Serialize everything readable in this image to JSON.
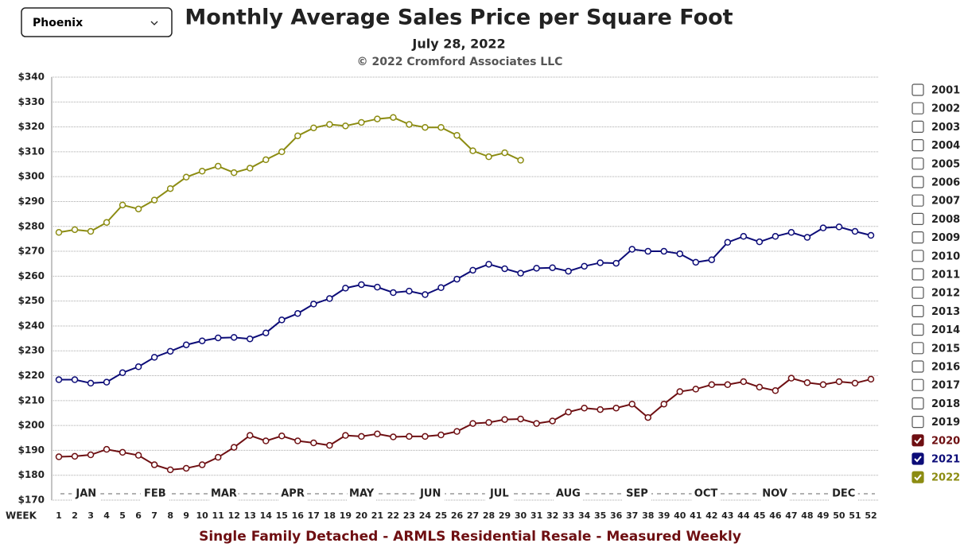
{
  "dropdown": "Phoenix",
  "chart_data": {
    "type": "line",
    "title": "Monthly Average Sales Price per Square Foot",
    "subtitle": "July 28, 2022",
    "copyright": "© 2022 Cromford Associates LLC",
    "footer": "Single Family Detached - ARMLS Residential Resale - Measured Weekly",
    "x_label": "WEEK",
    "months": [
      "JAN",
      "FEB",
      "MAR",
      "APR",
      "MAY",
      "JUN",
      "JUL",
      "AUG",
      "SEP",
      "OCT",
      "NOV",
      "DEC"
    ],
    "x": [
      1,
      2,
      3,
      4,
      5,
      6,
      7,
      8,
      9,
      10,
      11,
      12,
      13,
      14,
      15,
      16,
      17,
      18,
      19,
      20,
      21,
      22,
      23,
      24,
      25,
      26,
      27,
      28,
      29,
      30,
      31,
      32,
      33,
      34,
      35,
      36,
      37,
      38,
      39,
      40,
      41,
      42,
      43,
      44,
      45,
      46,
      47,
      48,
      49,
      50,
      51,
      52
    ],
    "xlim": [
      0.55,
      52.45
    ],
    "xticks": [
      1,
      2,
      3,
      4,
      5,
      6,
      7,
      8,
      9,
      10,
      11,
      12,
      13,
      14,
      15,
      16,
      17,
      18,
      19,
      20,
      21,
      22,
      23,
      24,
      25,
      26,
      27,
      28,
      29,
      30,
      31,
      32,
      33,
      34,
      35,
      36,
      37,
      38,
      39,
      40,
      41,
      42,
      43,
      44,
      45,
      46,
      47,
      48,
      49,
      50,
      51,
      52
    ],
    "ylim": [
      170,
      340
    ],
    "yticks": [
      {
        "value": 170,
        "label": "$170"
      },
      {
        "value": 180,
        "label": "$180"
      },
      {
        "value": 190,
        "label": "$190"
      },
      {
        "value": 200,
        "label": "$200"
      },
      {
        "value": 210,
        "label": "$210"
      },
      {
        "value": 220,
        "label": "$220"
      },
      {
        "value": 230,
        "label": "$230"
      },
      {
        "value": 240,
        "label": "$240"
      },
      {
        "value": 250,
        "label": "$250"
      },
      {
        "value": 260,
        "label": "$260"
      },
      {
        "value": 270,
        "label": "$270"
      },
      {
        "value": 280,
        "label": "$280"
      },
      {
        "value": 290,
        "label": "$290"
      },
      {
        "value": 300,
        "label": "$300"
      },
      {
        "value": 310,
        "label": "$310"
      },
      {
        "value": 320,
        "label": "$320"
      },
      {
        "value": 330,
        "label": "$330"
      },
      {
        "value": 340,
        "label": "$340"
      }
    ],
    "grid": true,
    "hidden_series": [
      "2001",
      "2002",
      "2003",
      "2004",
      "2005",
      "2006",
      "2007",
      "2008",
      "2009",
      "2010",
      "2011",
      "2012",
      "2013",
      "2014",
      "2015",
      "2016",
      "2017",
      "2018",
      "2019"
    ],
    "series": [
      {
        "name": "2020",
        "color": "#6e0f12",
        "values": [
          187.4,
          187.6,
          188.2,
          190.4,
          189.2,
          188.0,
          184.2,
          182.2,
          182.8,
          184.2,
          187.2,
          191.2,
          196.0,
          193.8,
          195.8,
          193.8,
          193.0,
          192.0,
          196.0,
          195.6,
          196.6,
          195.4,
          195.6,
          195.6,
          196.2,
          197.6,
          200.8,
          201.2,
          202.4,
          202.6,
          200.8,
          201.8,
          205.4,
          207.0,
          206.4,
          207.0,
          208.6,
          203.2,
          208.6,
          213.6,
          214.6,
          216.4,
          216.4,
          217.6,
          215.4,
          214.0,
          219.0,
          217.2,
          216.4,
          217.6,
          217.0,
          218.6
        ]
      },
      {
        "name": "2021",
        "color": "#0c0c78",
        "values": [
          218.4,
          218.4,
          217.0,
          217.4,
          221.2,
          223.6,
          227.4,
          229.8,
          232.4,
          234.0,
          235.2,
          235.4,
          234.8,
          237.2,
          242.4,
          245.0,
          248.8,
          251.0,
          255.2,
          256.6,
          255.6,
          253.4,
          254.0,
          252.6,
          255.4,
          258.8,
          262.4,
          264.8,
          263.0,
          261.2,
          263.2,
          263.4,
          262.0,
          264.0,
          265.4,
          265.2,
          270.8,
          270.0,
          270.0,
          269.0,
          265.6,
          266.6,
          273.6,
          276.0,
          273.8,
          276.0,
          277.6,
          275.6,
          279.4,
          279.8,
          278.0,
          276.4
        ]
      },
      {
        "name": "2022",
        "color": "#8c8c12",
        "values": [
          277.6,
          278.7,
          278.0,
          281.6,
          288.6,
          287.0,
          290.6,
          295.2,
          299.8,
          302.2,
          304.2,
          301.6,
          303.4,
          306.8,
          310.0,
          316.4,
          319.6,
          321.0,
          320.4,
          321.8,
          323.2,
          323.8,
          321.0,
          319.8,
          319.8,
          316.6,
          310.4,
          308.0,
          309.6,
          306.6,
          null,
          null,
          null,
          null,
          null,
          null,
          null,
          null,
          null,
          null,
          null,
          null,
          null,
          null,
          null,
          null,
          null,
          null,
          null,
          null,
          null,
          null
        ]
      }
    ]
  }
}
